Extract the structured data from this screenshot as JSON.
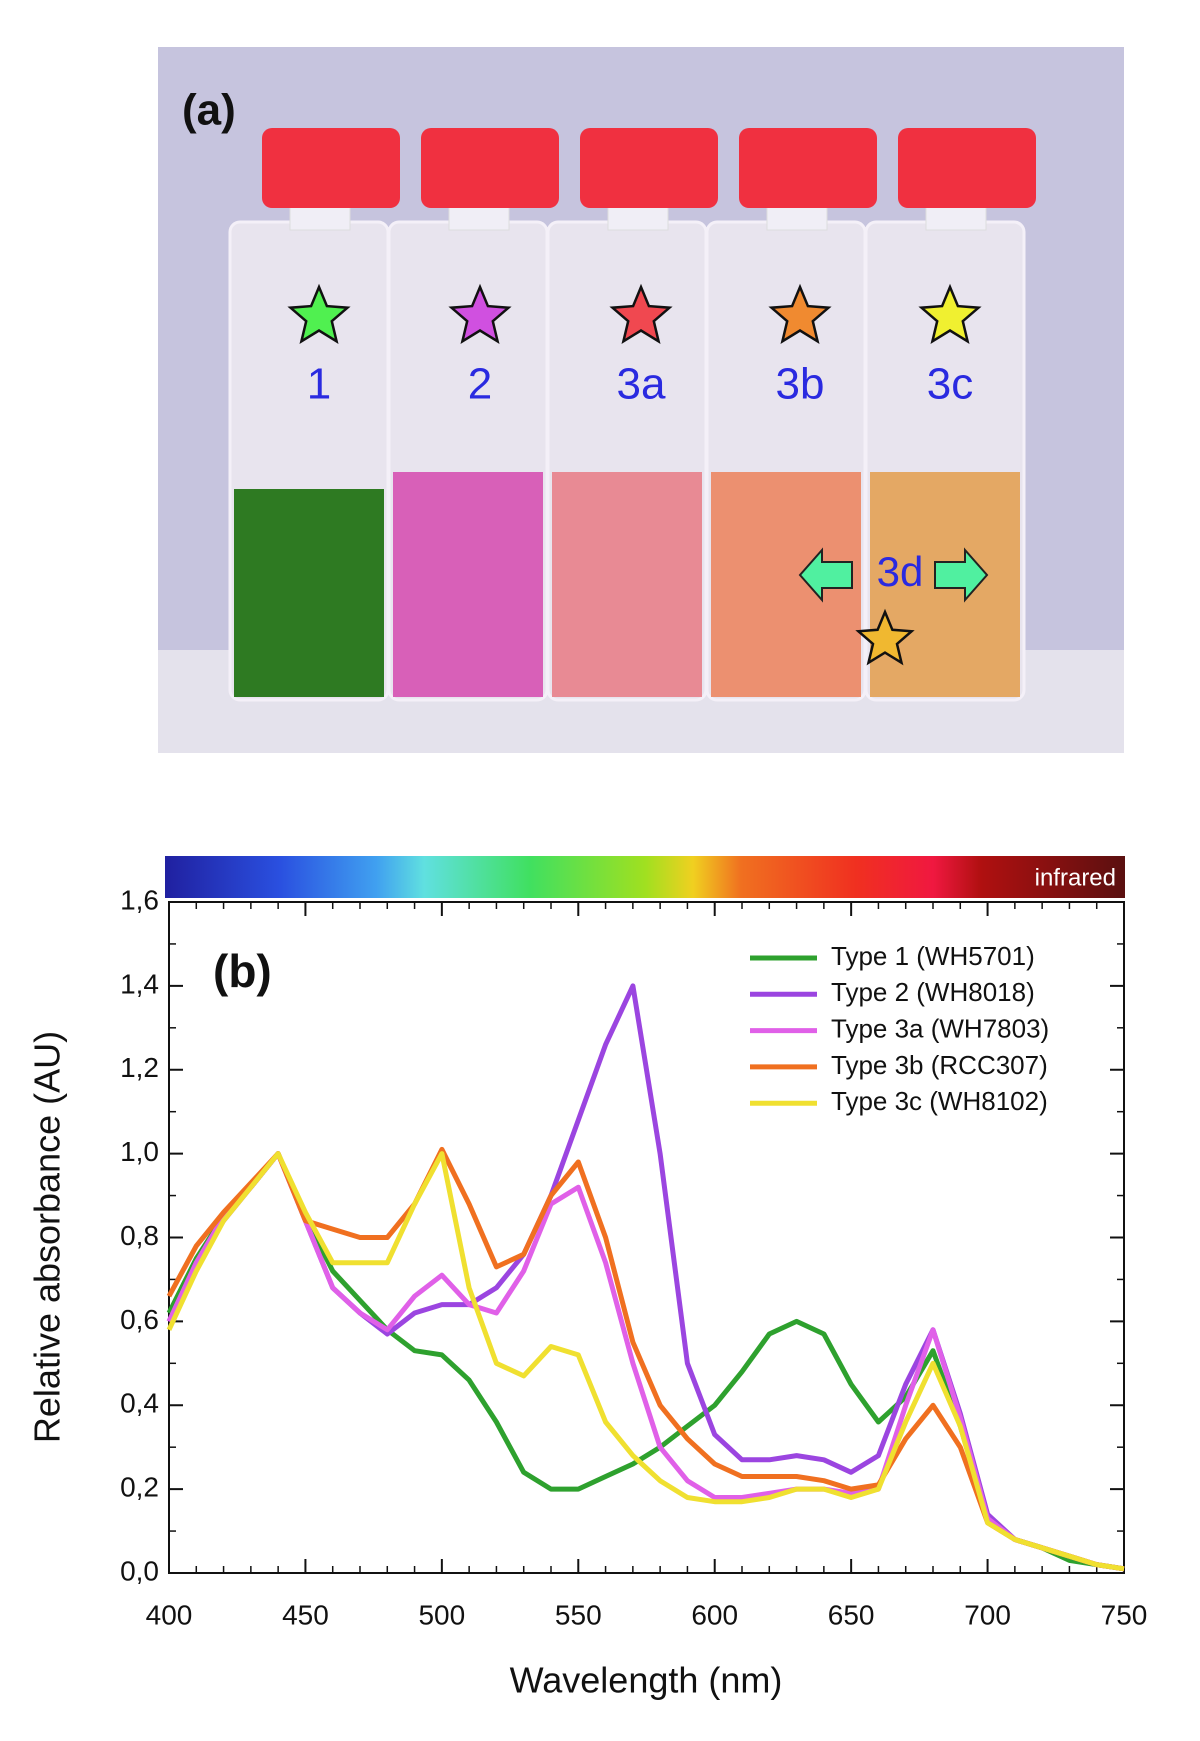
{
  "panel_a": {
    "label": "(a)",
    "samples": [
      "1",
      "2",
      "3a",
      "3b",
      "3c"
    ],
    "extra": "3d"
  },
  "chart_data": {
    "type": "line",
    "panel_label": "(b)",
    "colorbar_label": "infrared",
    "x_label": "Wavelength (nm)",
    "y_label": "Relative absorbance (AU)",
    "x": [
      400,
      410,
      420,
      430,
      440,
      450,
      460,
      470,
      480,
      490,
      500,
      510,
      520,
      530,
      540,
      550,
      560,
      570,
      580,
      590,
      600,
      610,
      620,
      630,
      640,
      650,
      660,
      670,
      680,
      690,
      700,
      710,
      720,
      730,
      740,
      750
    ],
    "xlim": [
      400,
      750
    ],
    "xticks": [
      400,
      450,
      500,
      550,
      600,
      650,
      700,
      750
    ],
    "ylim": [
      0,
      1.6
    ],
    "yticks": [
      {
        "value": 0,
        "label": "0,0"
      },
      {
        "value": 0.2,
        "label": "0,2"
      },
      {
        "value": 0.4,
        "label": "0,4"
      },
      {
        "value": 0.6,
        "label": "0,6"
      },
      {
        "value": 0.8,
        "label": "0,8"
      },
      {
        "value": 1.0,
        "label": "1,0"
      },
      {
        "value": 1.2,
        "label": "1,2"
      },
      {
        "value": 1.4,
        "label": "1,4"
      },
      {
        "value": 1.6,
        "label": "1,6"
      }
    ],
    "series": [
      {
        "name": "Type 1 (WH5701)",
        "color": "#2ea12e",
        "values": [
          0.62,
          0.75,
          0.85,
          0.92,
          1.0,
          0.85,
          0.72,
          0.65,
          0.58,
          0.53,
          0.52,
          0.46,
          0.36,
          0.24,
          0.2,
          0.2,
          0.23,
          0.26,
          0.3,
          0.35,
          0.4,
          0.48,
          0.57,
          0.6,
          0.57,
          0.45,
          0.36,
          0.42,
          0.53,
          0.35,
          0.13,
          0.08,
          0.06,
          0.03,
          0.02,
          0.01
        ]
      },
      {
        "name": "Type 2 (WH8018)",
        "color": "#9b45e0",
        "values": [
          0.6,
          0.74,
          0.84,
          0.92,
          1.0,
          0.84,
          0.68,
          0.62,
          0.57,
          0.62,
          0.64,
          0.64,
          0.68,
          0.76,
          0.9,
          1.08,
          1.26,
          1.4,
          1.0,
          0.5,
          0.33,
          0.27,
          0.27,
          0.28,
          0.27,
          0.24,
          0.28,
          0.45,
          0.58,
          0.38,
          0.14,
          0.08,
          0.06,
          0.04,
          0.02,
          0.01
        ]
      },
      {
        "name": "Type 3a (WH7803)",
        "color": "#e060e8",
        "values": [
          0.6,
          0.74,
          0.85,
          0.92,
          1.0,
          0.84,
          0.68,
          0.62,
          0.58,
          0.66,
          0.71,
          0.64,
          0.62,
          0.72,
          0.88,
          0.92,
          0.74,
          0.5,
          0.3,
          0.22,
          0.18,
          0.18,
          0.19,
          0.2,
          0.2,
          0.19,
          0.2,
          0.4,
          0.58,
          0.37,
          0.13,
          0.08,
          0.06,
          0.04,
          0.02,
          0.01
        ]
      },
      {
        "name": "Type 3b (RCC307)",
        "color": "#f07020",
        "values": [
          0.66,
          0.78,
          0.86,
          0.93,
          1.0,
          0.84,
          0.82,
          0.8,
          0.8,
          0.88,
          1.01,
          0.88,
          0.73,
          0.76,
          0.9,
          0.98,
          0.8,
          0.55,
          0.4,
          0.32,
          0.26,
          0.23,
          0.23,
          0.23,
          0.22,
          0.2,
          0.21,
          0.32,
          0.4,
          0.3,
          0.12,
          0.08,
          0.06,
          0.04,
          0.02,
          0.01
        ]
      },
      {
        "name": "Type 3c (WH8102)",
        "color": "#f0e030",
        "values": [
          0.58,
          0.72,
          0.84,
          0.92,
          1.0,
          0.86,
          0.74,
          0.74,
          0.74,
          0.88,
          1.0,
          0.68,
          0.5,
          0.47,
          0.54,
          0.52,
          0.36,
          0.28,
          0.22,
          0.18,
          0.17,
          0.17,
          0.18,
          0.2,
          0.2,
          0.18,
          0.2,
          0.36,
          0.5,
          0.35,
          0.12,
          0.08,
          0.06,
          0.04,
          0.02,
          0.01
        ]
      }
    ]
  }
}
